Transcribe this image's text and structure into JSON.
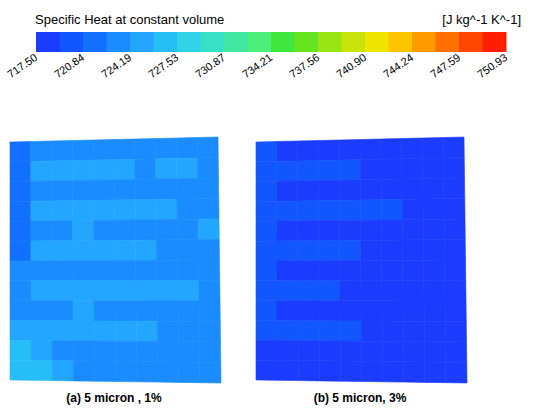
{
  "chart_data": {
    "type": "heatmap",
    "title": "Specific Heat at constant volume",
    "unit": "[J kg^-1 K^-1]",
    "colorbar": {
      "range": [
        717.5,
        750.93
      ],
      "ticks": [
        {
          "value": 717.5,
          "label": "717.50"
        },
        720.84,
        724.19,
        727.53,
        730.87,
        734.21,
        737.56,
        {
          "value": 740.9,
          "label": "740.90"
        },
        744.24,
        747.59,
        750.93
      ],
      "colors": [
        "#1b3cff",
        "#1256ff",
        "#1270ff",
        "#1a8cff",
        "#22a6ff",
        "#27bef8",
        "#2fd2e6",
        "#38e0c6",
        "#42e8a2",
        "#4cee7c",
        "#3ee63e",
        "#66e41e",
        "#98e414",
        "#c6e40a",
        "#eee400",
        "#ffc400",
        "#ff9a00",
        "#ff7000",
        "#ff4600",
        "#ff1e00"
      ]
    },
    "panels": [
      {
        "label": "(a) 5 micron , 1%",
        "cells": [
          [
            721.5,
            723.3,
            723.3,
            723.3,
            723.3,
            723.3,
            723.3,
            723.3,
            723.3,
            723.3
          ],
          [
            721.5,
            725.0,
            725.0,
            725.0,
            725.0,
            725.0,
            723.3,
            725.0,
            725.0,
            723.3
          ],
          [
            721.5,
            723.3,
            723.3,
            723.3,
            723.3,
            723.3,
            723.3,
            723.3,
            723.3,
            723.3
          ],
          [
            721.5,
            725.0,
            725.0,
            725.0,
            725.0,
            725.0,
            725.0,
            725.0,
            723.3,
            723.3
          ],
          [
            721.5,
            723.3,
            723.3,
            725.0,
            723.3,
            723.3,
            723.3,
            723.3,
            723.3,
            725.0
          ],
          [
            721.5,
            725.0,
            725.0,
            725.0,
            725.0,
            725.0,
            725.0,
            723.3,
            723.3,
            723.3
          ],
          [
            723.3,
            723.3,
            723.3,
            723.3,
            723.3,
            723.3,
            723.3,
            723.3,
            723.3,
            723.3
          ],
          [
            723.3,
            725.0,
            725.0,
            725.0,
            725.0,
            725.0,
            725.0,
            725.0,
            725.0,
            723.3
          ],
          [
            723.3,
            723.3,
            723.3,
            725.0,
            723.3,
            723.3,
            723.3,
            723.3,
            723.3,
            723.3
          ],
          [
            725.0,
            725.0,
            725.0,
            725.0,
            725.0,
            725.0,
            725.0,
            723.3,
            723.3,
            723.3
          ],
          [
            726.7,
            725.0,
            723.3,
            723.3,
            723.3,
            723.3,
            723.3,
            723.3,
            723.3,
            723.3
          ],
          [
            726.7,
            726.7,
            725.0,
            723.3,
            723.3,
            723.3,
            723.3,
            723.3,
            723.3,
            723.3
          ]
        ]
      },
      {
        "label": "(b) 5 micron, 3%",
        "cells": [
          [
            719.8,
            718.3,
            718.3,
            718.3,
            718.3,
            718.3,
            718.3,
            718.3,
            718.3,
            718.3
          ],
          [
            719.8,
            719.8,
            719.8,
            719.8,
            719.8,
            718.3,
            718.3,
            718.3,
            718.3,
            718.3
          ],
          [
            719.8,
            718.3,
            718.3,
            718.3,
            718.3,
            718.3,
            718.3,
            718.3,
            718.3,
            718.3
          ],
          [
            719.8,
            719.8,
            719.8,
            719.8,
            719.8,
            719.8,
            719.8,
            718.3,
            718.3,
            718.3
          ],
          [
            719.8,
            718.3,
            718.3,
            718.3,
            718.3,
            718.3,
            718.3,
            718.3,
            718.3,
            718.3
          ],
          [
            719.8,
            719.8,
            719.8,
            719.8,
            719.8,
            718.3,
            718.3,
            718.3,
            718.3,
            718.3
          ],
          [
            719.8,
            718.3,
            718.3,
            718.3,
            718.3,
            718.3,
            718.3,
            718.3,
            718.3,
            718.3
          ],
          [
            719.8,
            719.8,
            719.8,
            719.8,
            718.3,
            718.3,
            718.3,
            718.3,
            718.3,
            718.3
          ],
          [
            719.8,
            718.3,
            718.3,
            718.3,
            718.3,
            718.3,
            718.3,
            718.3,
            718.3,
            718.3
          ],
          [
            719.8,
            719.8,
            719.8,
            719.8,
            719.8,
            718.3,
            718.3,
            718.3,
            718.3,
            718.3
          ],
          [
            718.3,
            718.3,
            718.3,
            718.3,
            718.3,
            718.3,
            718.3,
            718.3,
            718.3,
            718.3
          ],
          [
            718.3,
            718.3,
            718.3,
            718.3,
            718.3,
            718.3,
            718.3,
            718.3,
            718.3,
            718.3
          ]
        ]
      }
    ]
  }
}
